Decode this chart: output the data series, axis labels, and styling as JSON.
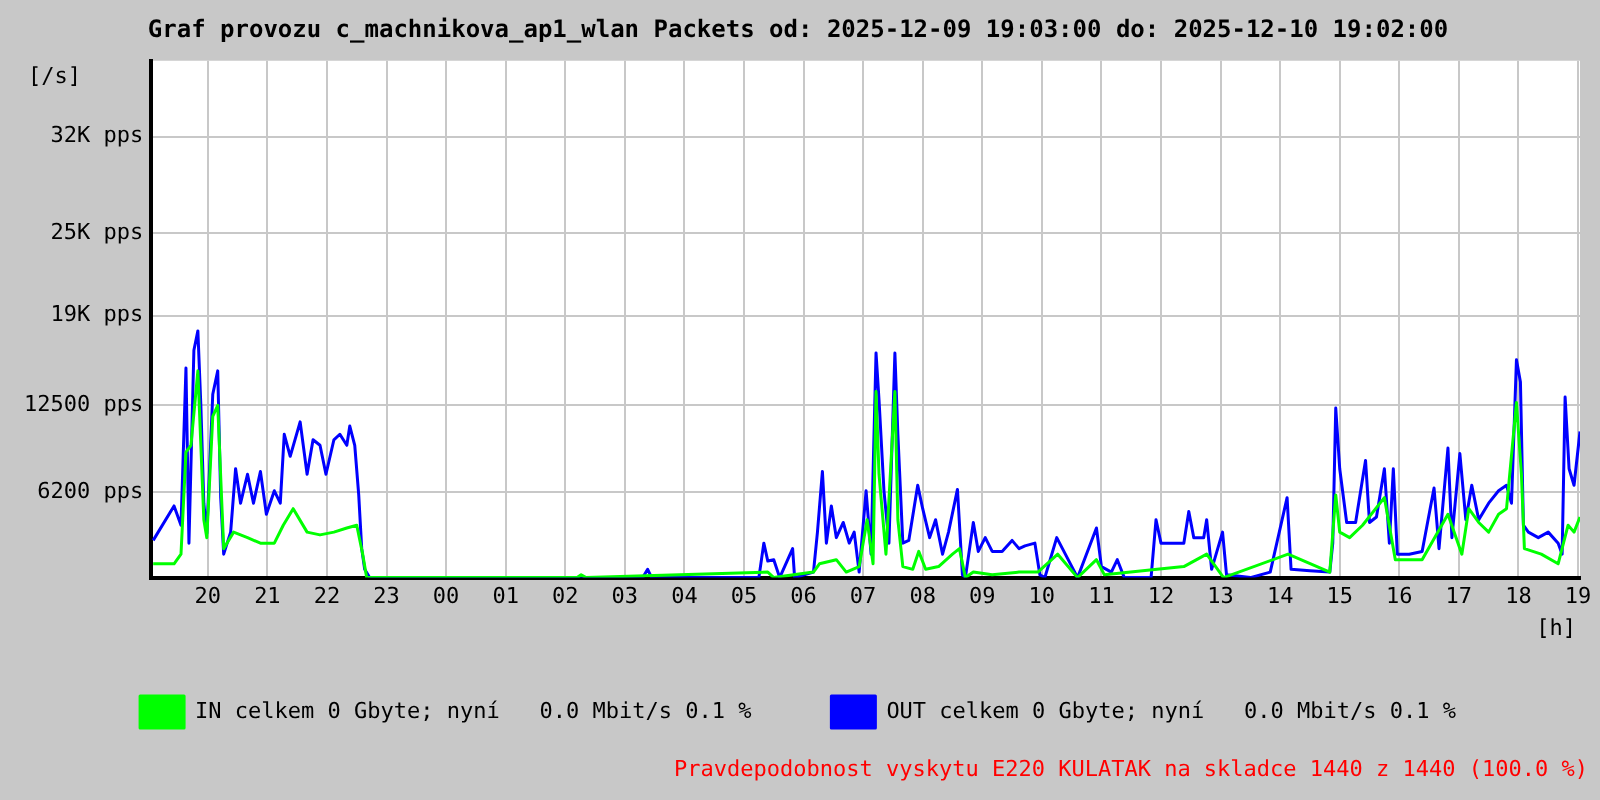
{
  "chart_data": {
    "type": "line",
    "title": "Graf provozu c_machnikova_ap1_wlan Packets od: 2025-12-09 19:03:00 do: 2025-12-10 19:02:00",
    "ylabel": "[/s]",
    "xlabel": "[h]",
    "annotations": [
      "Pravdepodobnost vyskytu E220 KULATAK na skladce 1440 z 1440 (100.0 %)"
    ],
    "xlim": [
      "2025-12-09T19:03",
      "2025-12-10T19:02"
    ],
    "xticks": [
      {
        "value": "2025-12-09T20:00",
        "label": "20"
      },
      {
        "value": "2025-12-09T21:00",
        "label": "21"
      },
      {
        "value": "2025-12-09T22:00",
        "label": "22"
      },
      {
        "value": "2025-12-09T23:00",
        "label": "23"
      },
      {
        "value": "2025-12-10T00:00",
        "label": "00"
      },
      {
        "value": "2025-12-10T01:00",
        "label": "01"
      },
      {
        "value": "2025-12-10T02:00",
        "label": "02"
      },
      {
        "value": "2025-12-10T03:00",
        "label": "03"
      },
      {
        "value": "2025-12-10T04:00",
        "label": "04"
      },
      {
        "value": "2025-12-10T05:00",
        "label": "05"
      },
      {
        "value": "2025-12-10T06:00",
        "label": "06"
      },
      {
        "value": "2025-12-10T07:00",
        "label": "07"
      },
      {
        "value": "2025-12-10T08:00",
        "label": "08"
      },
      {
        "value": "2025-12-10T09:00",
        "label": "09"
      },
      {
        "value": "2025-12-10T10:00",
        "label": "10"
      },
      {
        "value": "2025-12-10T11:00",
        "label": "11"
      },
      {
        "value": "2025-12-10T12:00",
        "label": "12"
      },
      {
        "value": "2025-12-10T13:00",
        "label": "13"
      },
      {
        "value": "2025-12-10T14:00",
        "label": "14"
      },
      {
        "value": "2025-12-10T15:00",
        "label": "15"
      },
      {
        "value": "2025-12-10T16:00",
        "label": "16"
      },
      {
        "value": "2025-12-10T17:00",
        "label": "17"
      },
      {
        "value": "2025-12-10T18:00",
        "label": "18"
      },
      {
        "value": "2025-12-10T19:00",
        "label": "19"
      }
    ],
    "ylim": [
      0,
      37500
    ],
    "yticks": [
      {
        "value": 6200,
        "label": "6200 pps"
      },
      {
        "value": 12500,
        "label": "12500 pps"
      },
      {
        "value": 19000,
        "label": "19K pps"
      },
      {
        "value": 25000,
        "label": "25K pps"
      },
      {
        "value": 32000,
        "label": "32K pps"
      }
    ],
    "grid": true,
    "legend": "bottom",
    "series": [
      {
        "name": "IN celkem 0 Gbyte; nyní   0.0 Mbit/s 0.1 %",
        "color": "#00ff00",
        "x": [
          "2025-12-09T19:05",
          "2025-12-09T19:26",
          "2025-12-09T19:33",
          "2025-12-09T19:38",
          "2025-12-09T19:43",
          "2025-12-09T19:50",
          "2025-12-09T19:56",
          "2025-12-09T19:59",
          "2025-12-09T20:05",
          "2025-12-09T20:10",
          "2025-12-09T20:16",
          "2025-12-09T20:26",
          "2025-12-09T20:40",
          "2025-12-09T20:53",
          "2025-12-09T21:07",
          "2025-12-09T21:16",
          "2025-12-09T21:26",
          "2025-12-09T21:40",
          "2025-12-09T21:53",
          "2025-12-09T22:07",
          "2025-12-09T22:20",
          "2025-12-09T22:30",
          "2025-12-09T22:36",
          "2025-12-09T22:40",
          "2025-12-10T02:12",
          "2025-12-10T02:16",
          "2025-12-10T02:21",
          "2025-12-10T05:24",
          "2025-12-10T05:30",
          "2025-12-10T06:10",
          "2025-12-10T06:16",
          "2025-12-10T06:33",
          "2025-12-10T06:43",
          "2025-12-10T06:56",
          "2025-12-10T07:04",
          "2025-12-10T07:10",
          "2025-12-10T07:13",
          "2025-12-10T07:16",
          "2025-12-10T07:23",
          "2025-12-10T07:32",
          "2025-12-10T07:35",
          "2025-12-10T07:40",
          "2025-12-10T07:50",
          "2025-12-10T07:56",
          "2025-12-10T08:03",
          "2025-12-10T08:16",
          "2025-12-10T08:30",
          "2025-12-10T08:37",
          "2025-12-10T08:43",
          "2025-12-10T08:51",
          "2025-12-10T09:10",
          "2025-12-10T09:37",
          "2025-12-10T09:56",
          "2025-12-10T10:16",
          "2025-12-10T10:36",
          "2025-12-10T10:55",
          "2025-12-10T11:03",
          "2025-12-10T11:56",
          "2025-12-10T12:23",
          "2025-12-10T12:46",
          "2025-12-10T13:03",
          "2025-12-10T14:08",
          "2025-12-10T14:50",
          "2025-12-10T14:56",
          "2025-12-10T15:00",
          "2025-12-10T15:10",
          "2025-12-10T15:23",
          "2025-12-10T15:45",
          "2025-12-10T15:56",
          "2025-12-10T16:23",
          "2025-12-10T16:49",
          "2025-12-10T17:03",
          "2025-12-10T17:10",
          "2025-12-10T17:20",
          "2025-12-10T17:30",
          "2025-12-10T17:40",
          "2025-12-10T17:48",
          "2025-12-10T17:58",
          "2025-12-10T18:03",
          "2025-12-10T18:06",
          "2025-12-10T18:23",
          "2025-12-10T18:40",
          "2025-12-10T18:50",
          "2025-12-10T18:56",
          "2025-12-10T19:02"
        ],
        "values": [
          1000,
          1000,
          1700,
          9100,
          9600,
          15000,
          4200,
          2900,
          11700,
          12500,
          2100,
          3300,
          2900,
          2500,
          2500,
          3800,
          5000,
          3300,
          3100,
          3300,
          3600,
          3800,
          1700,
          0,
          0,
          200,
          0,
          400,
          0,
          400,
          1000,
          1300,
          400,
          800,
          4200,
          1000,
          13500,
          7500,
          1700,
          13500,
          4200,
          800,
          600,
          1900,
          600,
          800,
          1700,
          2100,
          0,
          400,
          200,
          400,
          400,
          1700,
          0,
          1300,
          200,
          600,
          800,
          1700,
          0,
          1700,
          400,
          6000,
          3300,
          2900,
          3800,
          5800,
          1300,
          1300,
          4600,
          1700,
          5000,
          4000,
          3300,
          4600,
          5000,
          12700,
          7500,
          2100,
          1700,
          1000,
          3800,
          3300,
          4400
        ]
      },
      {
        "name": "OUT celkem 0 Gbyte; nyní   0.0 Mbit/s 0.1 %",
        "color": "#0000ff",
        "x": [
          "2025-12-09T19:05",
          "2025-12-09T19:26",
          "2025-12-09T19:33",
          "2025-12-09T19:38",
          "2025-12-09T19:41",
          "2025-12-09T19:46",
          "2025-12-09T19:50",
          "2025-12-09T19:53",
          "2025-12-09T19:56",
          "2025-12-09T19:59",
          "2025-12-09T20:05",
          "2025-12-09T20:10",
          "2025-12-09T20:13",
          "2025-12-09T20:16",
          "2025-12-09T20:23",
          "2025-12-09T20:28",
          "2025-12-09T20:33",
          "2025-12-09T20:40",
          "2025-12-09T20:46",
          "2025-12-09T20:53",
          "2025-12-09T20:59",
          "2025-12-09T21:07",
          "2025-12-09T21:13",
          "2025-12-09T21:17",
          "2025-12-09T21:23",
          "2025-12-09T21:33",
          "2025-12-09T21:40",
          "2025-12-09T21:46",
          "2025-12-09T21:53",
          "2025-12-09T21:59",
          "2025-12-09T22:07",
          "2025-12-09T22:13",
          "2025-12-09T22:20",
          "2025-12-09T22:23",
          "2025-12-09T22:28",
          "2025-12-09T22:32",
          "2025-12-09T22:35",
          "2025-12-09T22:38",
          "2025-12-09T22:43",
          "2025-12-10T03:18",
          "2025-12-10T03:23",
          "2025-12-10T03:27",
          "2025-12-10T05:15",
          "2025-12-10T05:20",
          "2025-12-10T05:24",
          "2025-12-10T05:30",
          "2025-12-10T05:36",
          "2025-12-10T05:49",
          "2025-12-10T05:51",
          "2025-12-10T06:10",
          "2025-12-10T06:14",
          "2025-12-10T06:19",
          "2025-12-10T06:23",
          "2025-12-10T06:28",
          "2025-12-10T06:33",
          "2025-12-10T06:40",
          "2025-12-10T06:46",
          "2025-12-10T06:51",
          "2025-12-10T06:56",
          "2025-12-10T07:03",
          "2025-12-10T07:08",
          "2025-12-10T07:13",
          "2025-12-10T07:16",
          "2025-12-10T07:21",
          "2025-12-10T07:26",
          "2025-12-10T07:32",
          "2025-12-10T07:35",
          "2025-12-10T07:40",
          "2025-12-10T07:46",
          "2025-12-10T07:55",
          "2025-12-10T08:00",
          "2025-12-10T08:07",
          "2025-12-10T08:13",
          "2025-12-10T08:20",
          "2025-12-10T08:26",
          "2025-12-10T08:35",
          "2025-12-10T08:40",
          "2025-12-10T08:43",
          "2025-12-10T08:51",
          "2025-12-10T08:56",
          "2025-12-10T09:03",
          "2025-12-10T09:10",
          "2025-12-10T09:20",
          "2025-12-10T09:30",
          "2025-12-10T09:37",
          "2025-12-10T09:43",
          "2025-12-10T09:53",
          "2025-12-10T09:58",
          "2025-12-10T10:03",
          "2025-12-10T10:15",
          "2025-12-10T10:36",
          "2025-12-10T10:55",
          "2025-12-10T11:00",
          "2025-12-10T11:10",
          "2025-12-10T11:16",
          "2025-12-10T11:23",
          "2025-12-10T11:50",
          "2025-12-10T11:55",
          "2025-12-10T12:00",
          "2025-12-10T12:23",
          "2025-12-10T12:28",
          "2025-12-10T12:33",
          "2025-12-10T12:43",
          "2025-12-10T12:46",
          "2025-12-10T12:51",
          "2025-12-10T13:02",
          "2025-12-10T13:06",
          "2025-12-10T13:30",
          "2025-12-10T13:50",
          "2025-12-10T14:07",
          "2025-12-10T14:11",
          "2025-12-10T14:30",
          "2025-12-10T14:50",
          "2025-12-10T14:53",
          "2025-12-10T14:56",
          "2025-12-10T15:00",
          "2025-12-10T15:07",
          "2025-12-10T15:16",
          "2025-12-10T15:22",
          "2025-12-10T15:26",
          "2025-12-10T15:30",
          "2025-12-10T15:37",
          "2025-12-10T15:45",
          "2025-12-10T15:50",
          "2025-12-10T15:54",
          "2025-12-10T15:58",
          "2025-12-10T16:10",
          "2025-12-10T16:23",
          "2025-12-10T16:35",
          "2025-12-10T16:40",
          "2025-12-10T16:49",
          "2025-12-10T16:53",
          "2025-12-10T17:01",
          "2025-12-10T17:07",
          "2025-12-10T17:13",
          "2025-12-10T17:20",
          "2025-12-10T17:30",
          "2025-12-10T17:40",
          "2025-12-10T17:48",
          "2025-12-10T17:53",
          "2025-12-10T17:58",
          "2025-12-10T18:02",
          "2025-12-10T18:05",
          "2025-12-10T18:10",
          "2025-12-10T18:20",
          "2025-12-10T18:30",
          "2025-12-10T18:40",
          "2025-12-10T18:44",
          "2025-12-10T18:47",
          "2025-12-10T18:51",
          "2025-12-10T18:56",
          "2025-12-10T19:02"
        ],
        "values": [
          2700,
          5200,
          3800,
          15200,
          2500,
          16500,
          17900,
          12500,
          5400,
          3200,
          13300,
          15000,
          5800,
          1700,
          3300,
          7900,
          5400,
          7500,
          5400,
          7700,
          4600,
          6300,
          5400,
          10400,
          8800,
          11300,
          7500,
          10000,
          9600,
          7500,
          10000,
          10400,
          9600,
          11000,
          9600,
          6000,
          2100,
          600,
          0,
          0,
          600,
          0,
          0,
          2500,
          1200,
          1300,
          0,
          2100,
          0,
          400,
          3300,
          7700,
          2500,
          5200,
          2900,
          4000,
          2500,
          3300,
          400,
          6300,
          1700,
          16300,
          12900,
          6300,
          2500,
          16300,
          10400,
          2500,
          2700,
          6700,
          5000,
          2900,
          4200,
          1700,
          3300,
          6400,
          200,
          0,
          4000,
          1900,
          2900,
          1900,
          1900,
          2700,
          2100,
          2300,
          2500,
          200,
          0,
          2900,
          0,
          3600,
          800,
          400,
          1300,
          0,
          0,
          4200,
          2500,
          2500,
          4800,
          2900,
          2900,
          4200,
          600,
          3300,
          200,
          0,
          400,
          5800,
          600,
          500,
          400,
          2500,
          12300,
          7900,
          4000,
          4000,
          6700,
          8500,
          4000,
          4400,
          7900,
          2500,
          7900,
          1700,
          1700,
          1900,
          6500,
          2100,
          9400,
          2900,
          9000,
          4200,
          6700,
          4200,
          5400,
          6300,
          6700,
          5400,
          15800,
          14200,
          3800,
          3300,
          2900,
          3300,
          2500,
          1700,
          13100,
          7900,
          6700,
          10600
        ]
      }
    ]
  }
}
